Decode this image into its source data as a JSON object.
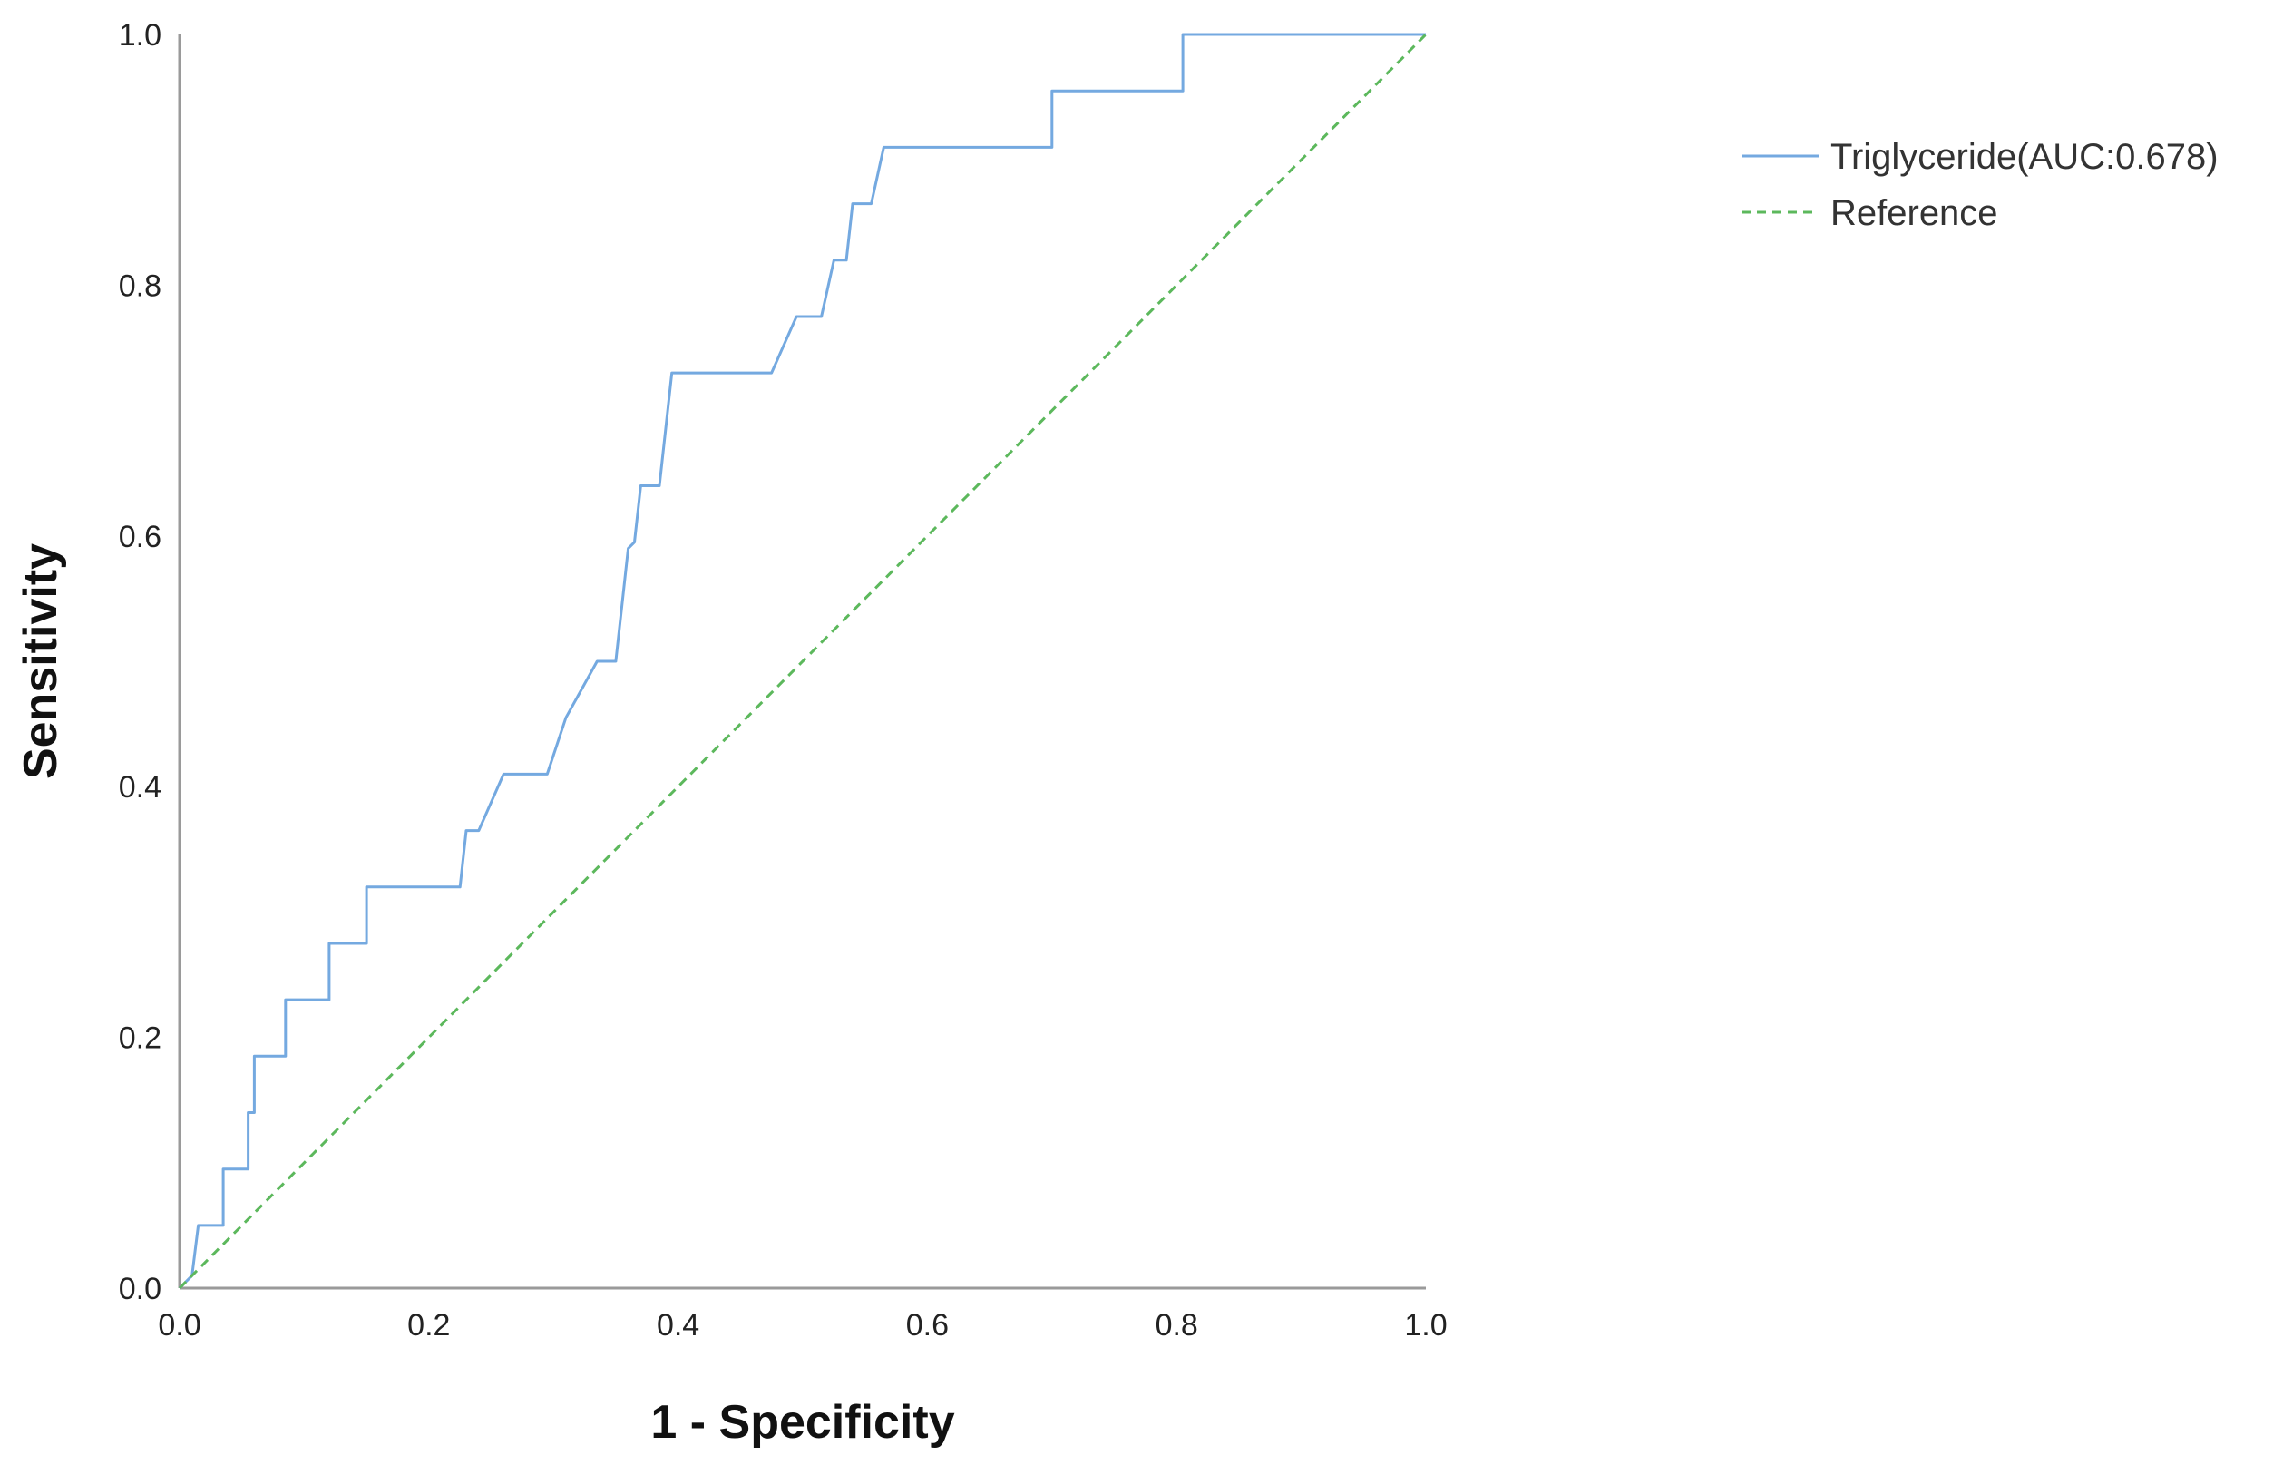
{
  "chart_data": {
    "type": "line",
    "title": "",
    "xlabel": "1 - Specificity",
    "ylabel": "Sensitivity",
    "xlim": [
      0,
      1
    ],
    "ylim": [
      0,
      1
    ],
    "xticks": [
      "0.0",
      "0.2",
      "0.4",
      "0.6",
      "0.8",
      "1.0"
    ],
    "yticks": [
      "0.0",
      "0.2",
      "0.4",
      "0.6",
      "0.8",
      "1.0"
    ],
    "grid": false,
    "legend_position": "top-right",
    "series": [
      {
        "name": "Triglyceride(AUC:0.678)",
        "color": "#74a9e0",
        "style": "solid",
        "x": [
          0.0,
          0.01,
          0.015,
          0.015,
          0.035,
          0.035,
          0.055,
          0.055,
          0.06,
          0.06,
          0.085,
          0.085,
          0.12,
          0.12,
          0.15,
          0.15,
          0.225,
          0.23,
          0.24,
          0.26,
          0.295,
          0.31,
          0.335,
          0.35,
          0.36,
          0.365,
          0.37,
          0.385,
          0.395,
          0.475,
          0.495,
          0.515,
          0.525,
          0.535,
          0.54,
          0.555,
          0.565,
          0.7,
          0.7,
          0.805,
          0.805,
          1.0
        ],
        "y": [
          0.0,
          0.01,
          0.05,
          0.05,
          0.05,
          0.095,
          0.095,
          0.14,
          0.14,
          0.185,
          0.185,
          0.23,
          0.23,
          0.275,
          0.275,
          0.32,
          0.32,
          0.365,
          0.365,
          0.41,
          0.41,
          0.455,
          0.5,
          0.5,
          0.59,
          0.595,
          0.64,
          0.64,
          0.73,
          0.73,
          0.775,
          0.775,
          0.82,
          0.82,
          0.865,
          0.865,
          0.91,
          0.91,
          0.955,
          0.955,
          1.0,
          1.0
        ]
      },
      {
        "name": "Reference",
        "color": "#5cb85c",
        "style": "dashed",
        "x": [
          0,
          1
        ],
        "y": [
          0,
          1
        ]
      }
    ]
  }
}
